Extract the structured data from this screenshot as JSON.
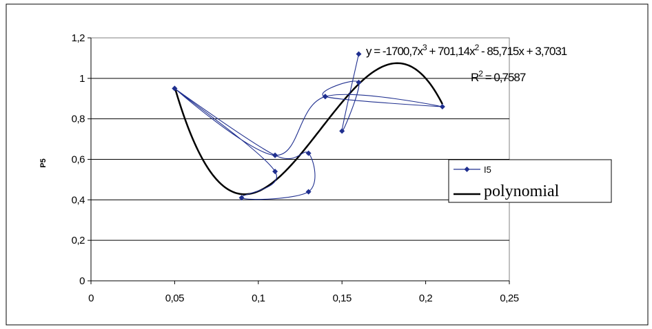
{
  "chart_data": {
    "type": "scatter",
    "xlabel": "",
    "ylabel": "P5",
    "xlim": [
      0,
      0.25
    ],
    "ylim": [
      0,
      1.2
    ],
    "x_ticks": [
      "0",
      "0,05",
      "0,1",
      "0,15",
      "0,2",
      "0,25"
    ],
    "y_ticks": [
      "0",
      "0,2",
      "0,4",
      "0,6",
      "0,8",
      "1",
      "1,2"
    ],
    "grid": "horizontal",
    "legend_position": "right",
    "series": [
      {
        "name": "I5",
        "color": "#1f2f8f",
        "marker": "diamond",
        "line": "smoothed",
        "x": [
          0.05,
          0.11,
          0.09,
          0.13,
          0.13,
          0.11,
          0.05,
          0.11,
          0.14,
          0.21,
          0.14,
          0.16,
          0.15,
          0.16
        ],
        "y": [
          0.95,
          0.54,
          0.41,
          0.44,
          0.63,
          0.62,
          0.95,
          0.62,
          0.91,
          0.86,
          0.91,
          0.98,
          0.74,
          1.12
        ]
      }
    ],
    "trendline": {
      "name": "polynomial",
      "color": "#000000",
      "coefficients": [
        -1700.7,
        701.14,
        -85.715,
        3.7031
      ],
      "x_range": [
        0.05,
        0.21
      ],
      "equation_label": "y = -1700,7x",
      "equation_label_2": " + 701,14x",
      "equation_label_3": " - 85,715x + 3,7031",
      "equation_sup_1": "3",
      "equation_sup_2": "2",
      "r2_label": "R",
      "r2_sup": "2",
      "r2_value": " = 0,7587"
    }
  }
}
